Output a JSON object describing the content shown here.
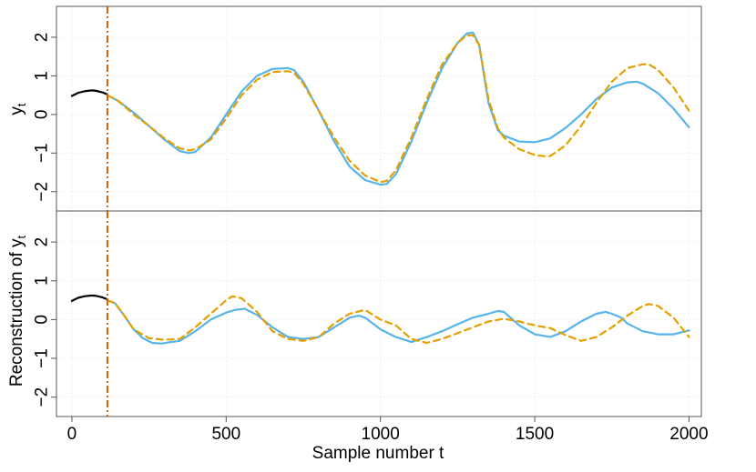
{
  "chart_data": [
    {
      "type": "line",
      "panel": "top",
      "ylabel": "y",
      "ylabel_sub": "t",
      "xlim": [
        -50,
        2040
      ],
      "ylim": [
        -2.5,
        2.8
      ],
      "yticks": [
        -2,
        -1,
        0,
        1,
        2
      ],
      "ytick_labels": [
        "−2",
        "−1",
        "0",
        "1",
        "2"
      ],
      "grid": true,
      "vline": {
        "x": 115,
        "color": "#D55E00",
        "style": "dashdot"
      },
      "series": [
        {
          "color": "#000000",
          "style": "solid",
          "x": [
            0,
            20,
            40,
            60,
            70,
            80,
            100,
            115
          ],
          "y": [
            0.48,
            0.56,
            0.6,
            0.62,
            0.62,
            0.61,
            0.57,
            0.52
          ]
        },
        {
          "color": "#56B4E9",
          "style": "solid",
          "x": [
            115,
            150,
            200,
            250,
            300,
            350,
            380,
            400,
            450,
            500,
            550,
            600,
            650,
            700,
            720,
            750,
            800,
            850,
            900,
            950,
            1000,
            1020,
            1050,
            1100,
            1150,
            1200,
            1250,
            1280,
            1300,
            1320,
            1350,
            1380,
            1400,
            1450,
            1500,
            1550,
            1600,
            1650,
            1700,
            1750,
            1800,
            1830,
            1850,
            1900,
            1950,
            2000
          ],
          "y": [
            0.5,
            0.35,
            0.05,
            -0.3,
            -0.65,
            -0.95,
            -1.0,
            -0.97,
            -0.6,
            0.0,
            0.6,
            1.0,
            1.18,
            1.2,
            1.15,
            0.85,
            0.1,
            -0.7,
            -1.35,
            -1.7,
            -1.82,
            -1.8,
            -1.55,
            -0.7,
            0.3,
            1.2,
            1.85,
            2.1,
            2.12,
            1.8,
            0.3,
            -0.4,
            -0.55,
            -0.7,
            -0.72,
            -0.62,
            -0.35,
            0.0,
            0.4,
            0.7,
            0.83,
            0.85,
            0.8,
            0.55,
            0.15,
            -0.33
          ]
        },
        {
          "color": "#E69F00",
          "style": "dashed",
          "x": [
            115,
            150,
            200,
            250,
            300,
            350,
            380,
            400,
            450,
            500,
            550,
            600,
            650,
            700,
            720,
            750,
            800,
            850,
            900,
            950,
            1000,
            1020,
            1050,
            1100,
            1150,
            1200,
            1250,
            1280,
            1300,
            1320,
            1350,
            1380,
            1400,
            1450,
            1500,
            1530,
            1550,
            1600,
            1650,
            1700,
            1750,
            1800,
            1850,
            1870,
            1900,
            1950,
            2000
          ],
          "y": [
            0.5,
            0.35,
            0.0,
            -0.3,
            -0.62,
            -0.88,
            -0.93,
            -0.9,
            -0.65,
            -0.1,
            0.5,
            0.9,
            1.1,
            1.12,
            1.08,
            0.8,
            0.1,
            -0.6,
            -1.2,
            -1.58,
            -1.75,
            -1.72,
            -1.45,
            -0.6,
            0.4,
            1.3,
            1.85,
            2.05,
            2.05,
            1.8,
            0.4,
            -0.35,
            -0.6,
            -0.9,
            -1.05,
            -1.08,
            -1.08,
            -0.8,
            -0.3,
            0.3,
            0.85,
            1.2,
            1.3,
            1.3,
            1.15,
            0.7,
            0.1
          ]
        }
      ]
    },
    {
      "type": "line",
      "panel": "bottom",
      "ylabel": "Reconstruction of y",
      "ylabel_sub": "t",
      "xlabel": "Sample number t",
      "xlim": [
        -50,
        2040
      ],
      "ylim": [
        -2.5,
        2.8
      ],
      "xticks": [
        0,
        500,
        1000,
        1500,
        2000
      ],
      "xtick_labels": [
        "0",
        "500",
        "1000",
        "1500",
        "2000"
      ],
      "yticks": [
        -2,
        -1,
        0,
        1,
        2
      ],
      "ytick_labels": [
        "−2",
        "−1",
        "0",
        "1",
        "2"
      ],
      "grid": true,
      "vline": {
        "x": 115,
        "color": "#D55E00",
        "style": "dashdot"
      },
      "series": [
        {
          "color": "#000000",
          "style": "solid",
          "x": [
            0,
            20,
            40,
            60,
            70,
            80,
            100,
            115
          ],
          "y": [
            0.48,
            0.56,
            0.6,
            0.62,
            0.62,
            0.61,
            0.57,
            0.52
          ]
        },
        {
          "color": "#56B4E9",
          "style": "solid",
          "x": [
            115,
            140,
            170,
            200,
            230,
            260,
            290,
            320,
            350,
            400,
            450,
            500,
            530,
            560,
            600,
            650,
            700,
            750,
            800,
            850,
            900,
            930,
            950,
            1000,
            1050,
            1100,
            1150,
            1200,
            1250,
            1300,
            1350,
            1380,
            1400,
            1450,
            1500,
            1550,
            1600,
            1650,
            1700,
            1730,
            1750,
            1780,
            1800,
            1850,
            1900,
            1950,
            2000
          ],
          "y": [
            0.5,
            0.42,
            0.1,
            -0.25,
            -0.48,
            -0.6,
            -0.62,
            -0.58,
            -0.55,
            -0.3,
            0.0,
            0.18,
            0.25,
            0.28,
            0.12,
            -0.2,
            -0.45,
            -0.5,
            -0.45,
            -0.2,
            0.05,
            0.1,
            0.05,
            -0.25,
            -0.45,
            -0.58,
            -0.45,
            -0.3,
            -0.12,
            0.05,
            0.15,
            0.22,
            0.2,
            -0.15,
            -0.38,
            -0.45,
            -0.3,
            -0.05,
            0.15,
            0.2,
            0.15,
            0.05,
            -0.1,
            -0.3,
            -0.38,
            -0.38,
            -0.28
          ]
        },
        {
          "color": "#E69F00",
          "style": "dashed",
          "x": [
            115,
            140,
            170,
            200,
            250,
            300,
            350,
            400,
            450,
            500,
            520,
            550,
            600,
            650,
            700,
            750,
            800,
            850,
            900,
            950,
            1000,
            1050,
            1100,
            1150,
            1200,
            1250,
            1300,
            1350,
            1400,
            1450,
            1500,
            1550,
            1600,
            1650,
            1700,
            1750,
            1800,
            1850,
            1870,
            1900,
            1950,
            2000
          ],
          "y": [
            0.5,
            0.42,
            0.1,
            -0.25,
            -0.48,
            -0.52,
            -0.5,
            -0.2,
            0.15,
            0.5,
            0.6,
            0.55,
            0.2,
            -0.3,
            -0.5,
            -0.55,
            -0.45,
            -0.1,
            0.15,
            0.25,
            0.0,
            -0.15,
            -0.5,
            -0.6,
            -0.5,
            -0.35,
            -0.2,
            -0.05,
            0.02,
            -0.05,
            -0.15,
            -0.22,
            -0.4,
            -0.55,
            -0.45,
            -0.2,
            0.1,
            0.35,
            0.4,
            0.35,
            0.05,
            -0.45
          ]
        }
      ]
    }
  ]
}
